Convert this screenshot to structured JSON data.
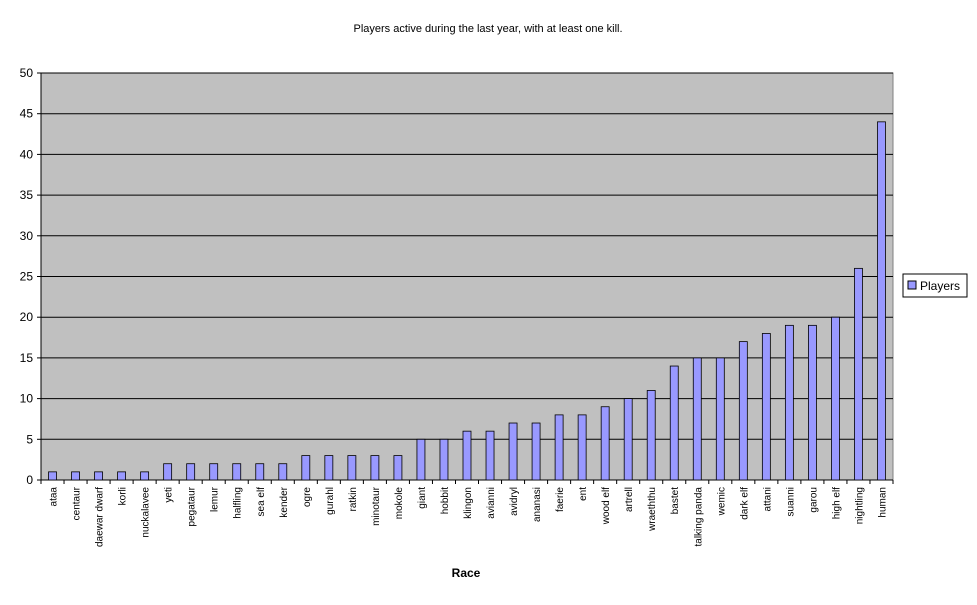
{
  "chart_data": {
    "type": "bar",
    "title": "Players active during the last year, with at least one kill.",
    "x_label": "Race",
    "categories": [
      "ataa",
      "centaur",
      "daewar dwarf",
      "korli",
      "nuckalavee",
      "yeti",
      "pegataur",
      "lemur",
      "halfling",
      "sea elf",
      "kender",
      "ogre",
      "gurahl",
      "ratkin",
      "minotaur",
      "mokole",
      "giant",
      "hobbit",
      "klingon",
      "avianni",
      "avidryl",
      "ananasi",
      "faerie",
      "ent",
      "wood elf",
      "artrell",
      "wraeththu",
      "bastet",
      "talking panda",
      "wemic",
      "dark elf",
      "attani",
      "suanni",
      "garou",
      "high elf",
      "nightling",
      "human"
    ],
    "series": [
      {
        "name": "Players",
        "color": "#9999ff",
        "values": [
          1,
          1,
          1,
          1,
          1,
          2,
          2,
          2,
          2,
          2,
          2,
          3,
          3,
          3,
          3,
          3,
          5,
          5,
          6,
          6,
          7,
          7,
          8,
          8,
          9,
          10,
          11,
          14,
          15,
          15,
          17,
          18,
          19,
          19,
          20,
          26,
          44
        ]
      }
    ],
    "ylim": [
      0,
      50
    ],
    "yticks": [
      0,
      5,
      10,
      15,
      20,
      25,
      30,
      35,
      40,
      45,
      50
    ],
    "grid": true,
    "legend": "right"
  }
}
